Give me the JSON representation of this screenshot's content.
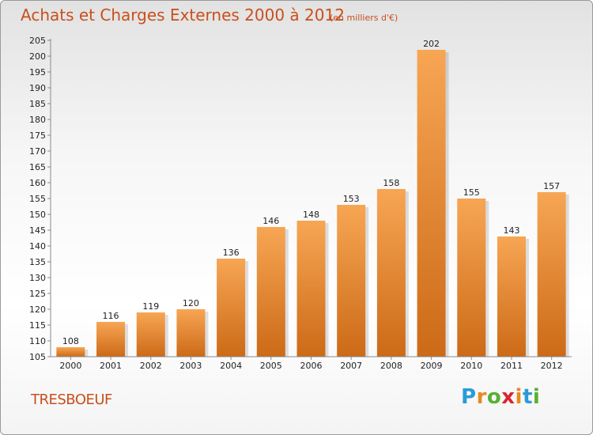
{
  "header": {
    "title": "Achats et Charges Externes 2000 à 2012",
    "subtitle": "(en milliers d'€)"
  },
  "footer": {
    "town": "TRESBOEUF",
    "logo_letters": [
      {
        "ch": "P",
        "color": "#2a9bd6"
      },
      {
        "ch": "r",
        "color": "#e8891e"
      },
      {
        "ch": "o",
        "color": "#58b031"
      },
      {
        "ch": "x",
        "color": "#d8262c"
      },
      {
        "ch": "i",
        "color": "#e8891e"
      },
      {
        "ch": "t",
        "color": "#2a9bd6"
      },
      {
        "ch": "i",
        "color": "#58b031"
      }
    ]
  },
  "chart_data": {
    "type": "bar",
    "categories": [
      "2000",
      "2001",
      "2002",
      "2003",
      "2004",
      "2005",
      "2006",
      "2007",
      "2008",
      "2009",
      "2010",
      "2011",
      "2012"
    ],
    "values": [
      108,
      116,
      119,
      120,
      136,
      146,
      148,
      153,
      158,
      202,
      155,
      143,
      157
    ],
    "title": "Achats et Charges Externes 2000 à 2012",
    "xlabel": "",
    "ylabel": "",
    "ylim": [
      105,
      205
    ],
    "yticks": [
      105,
      110,
      115,
      120,
      125,
      130,
      135,
      140,
      145,
      150,
      155,
      160,
      165,
      170,
      175,
      180,
      185,
      190,
      195,
      200,
      205
    ],
    "grid": false,
    "colors": {
      "bar_light": "#f7a654",
      "bar_dark": "#cc6a17",
      "axis": "#8a8a8a",
      "title": "#c8501c"
    }
  }
}
